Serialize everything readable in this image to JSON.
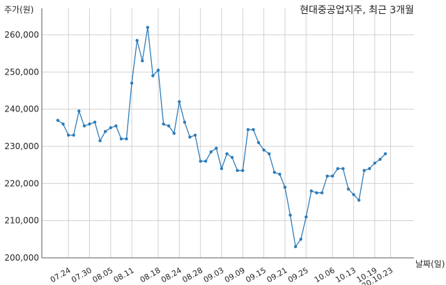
{
  "chart_data": {
    "type": "line",
    "title": "현대중공업지주, 최근 3개월",
    "ylabel": "주가(원)",
    "xlabel": "날짜(일)",
    "ylim": [
      200000,
      265000
    ],
    "yticks": [
      200000,
      210000,
      220000,
      230000,
      240000,
      250000,
      260000
    ],
    "ytick_labels": [
      "200,000",
      "210,000",
      "220,000",
      "230,000",
      "240,000",
      "250,000",
      "260,000"
    ],
    "xticks": [
      {
        "index": 2,
        "label": "07.24"
      },
      {
        "index": 6,
        "label": "07.30"
      },
      {
        "index": 10,
        "label": "08.05"
      },
      {
        "index": 14,
        "label": "08.11"
      },
      {
        "index": 19,
        "label": "08.18"
      },
      {
        "index": 23,
        "label": "08.24"
      },
      {
        "index": 27,
        "label": "08.28"
      },
      {
        "index": 31,
        "label": "09.03"
      },
      {
        "index": 35,
        "label": "09.09"
      },
      {
        "index": 39,
        "label": "09.15"
      },
      {
        "index": 43,
        "label": "09.21"
      },
      {
        "index": 47,
        "label": "09.25"
      },
      {
        "index": 52,
        "label": "10.06"
      },
      {
        "index": 56,
        "label": "10.13"
      },
      {
        "index": 60,
        "label": "10.19"
      },
      {
        "index": 63,
        "label": "20.10.23"
      }
    ],
    "grid": true,
    "color": "#2b7bb9",
    "series": [
      {
        "values": [
          237000,
          236000,
          233000,
          233000,
          239500,
          235500,
          236000,
          236500,
          231500,
          234000,
          235000,
          235500,
          232000,
          232000,
          247000,
          258500,
          253000,
          262000,
          249000,
          250500,
          236000,
          235500,
          233500,
          242000,
          236500,
          232500,
          233000,
          226000,
          226000,
          228500,
          229500,
          224000,
          228000,
          227000,
          223500,
          223500,
          234500,
          234500,
          231000,
          229000,
          228000,
          223000,
          222500,
          219000,
          211500,
          203000,
          205000,
          211000,
          218000,
          217500,
          217500,
          222000,
          222000,
          224000,
          224000,
          218500,
          217000,
          215500,
          223500,
          224000,
          225500,
          226500,
          228000
        ]
      }
    ]
  }
}
